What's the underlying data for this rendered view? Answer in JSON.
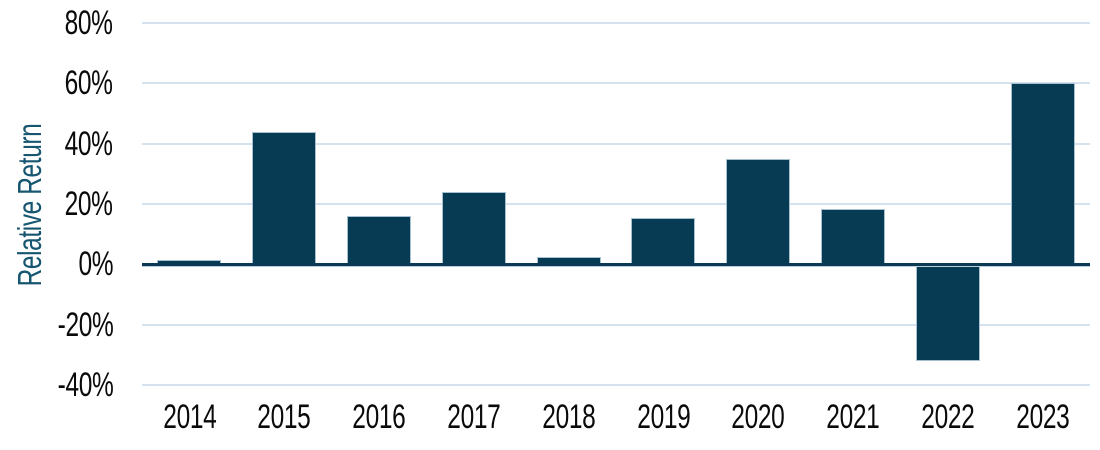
{
  "chart_data": {
    "type": "bar",
    "title": "",
    "xlabel": "",
    "ylabel": "Relative Return",
    "categories": [
      "2014",
      "2015",
      "2016",
      "2017",
      "2018",
      "2019",
      "2020",
      "2021",
      "2022",
      "2023"
    ],
    "values": [
      1.5,
      44,
      16,
      24,
      2.5,
      15.5,
      35,
      18.5,
      -32,
      60
    ],
    "unit": "%",
    "ylim": [
      -40,
      80
    ],
    "ytick_labels": [
      "80%",
      "60%",
      "40%",
      "20%",
      "0%",
      "-20%",
      "-40%"
    ],
    "grid": true,
    "legend_position": "none",
    "colors": {
      "bar_fill": "#073A53",
      "bar_border": "#A6C0CF",
      "gridline": "#D3E2EE",
      "zero_line": "#0A3A54",
      "zero_line_under_edge": "#B9CEDB",
      "axis_title_text": "#175670",
      "tick_text": "#0A0A0A",
      "background": "#FFFFFF"
    }
  }
}
